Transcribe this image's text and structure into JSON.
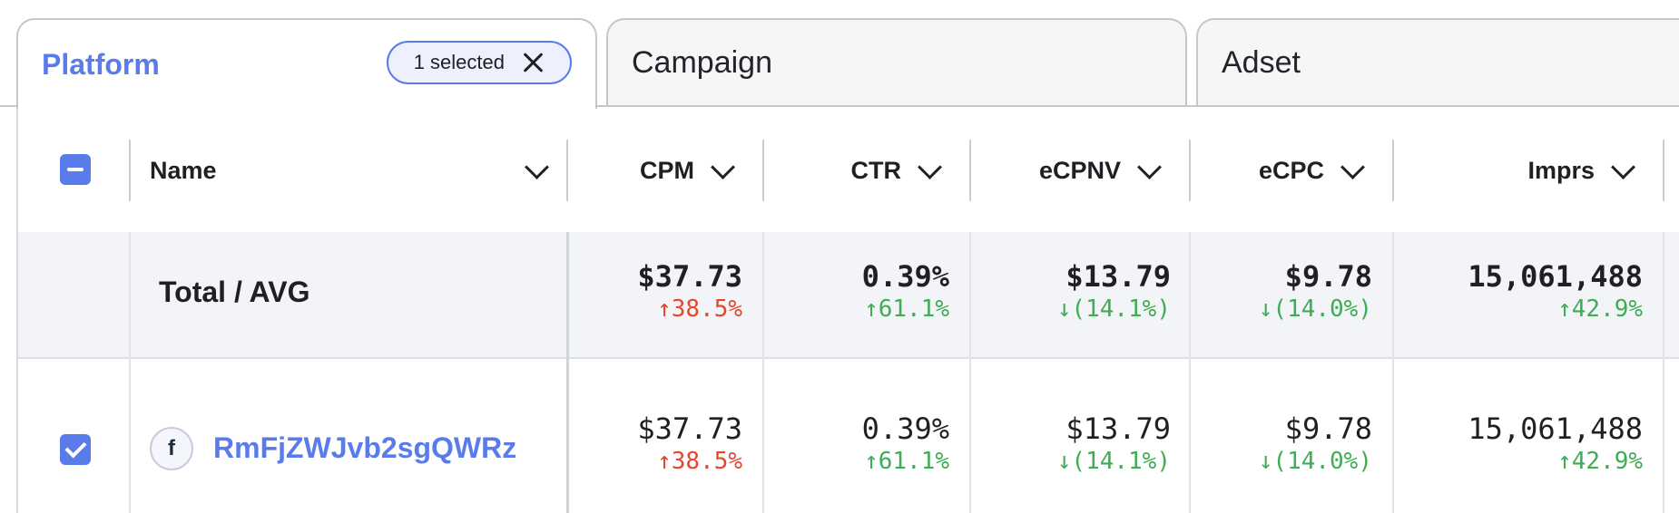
{
  "tabs": {
    "platform": {
      "label": "Platform",
      "chip_label": "1 selected"
    },
    "campaign": {
      "label": "Campaign"
    },
    "adset": {
      "label": "Adset"
    }
  },
  "columns": [
    {
      "key": "name",
      "label": "Name"
    },
    {
      "key": "cpm",
      "label": "CPM"
    },
    {
      "key": "ctr",
      "label": "CTR"
    },
    {
      "key": "ecpnv",
      "label": "eCPNV"
    },
    {
      "key": "ecpc",
      "label": "eCPC"
    },
    {
      "key": "imprs",
      "label": "Imprs"
    }
  ],
  "total_row": {
    "label": "Total / AVG",
    "cells": [
      {
        "value": "$37.73",
        "delta": "↑38.5%",
        "delta_color": "#e5472f"
      },
      {
        "value": "0.39%",
        "delta": "↑61.1%",
        "delta_color": "#3fad55"
      },
      {
        "value": "$13.79",
        "delta": "↓(14.1%)",
        "delta_color": "#3fad55"
      },
      {
        "value": "$9.78",
        "delta": "↓(14.0%)",
        "delta_color": "#3fad55"
      },
      {
        "value": "15,061,488",
        "delta": "↑42.9%",
        "delta_color": "#3fad55"
      }
    ]
  },
  "rows": [
    {
      "platform_icon": "f",
      "name": "RmFjZWJvb2sgQWRz",
      "checked": true,
      "cells": [
        {
          "value": "$37.73",
          "delta": "↑38.5%",
          "delta_color": "#e5472f"
        },
        {
          "value": "0.39%",
          "delta": "↑61.1%",
          "delta_color": "#3fad55"
        },
        {
          "value": "$13.79",
          "delta": "↓(14.1%)",
          "delta_color": "#3fad55"
        },
        {
          "value": "$9.78",
          "delta": "↓(14.0%)",
          "delta_color": "#3fad55"
        },
        {
          "value": "15,061,488",
          "delta": "↑42.9%",
          "delta_color": "#3fad55"
        }
      ]
    }
  ],
  "colors": {
    "accent": "#5a7bea",
    "negative": "#e5472f",
    "positive": "#3fad55"
  }
}
